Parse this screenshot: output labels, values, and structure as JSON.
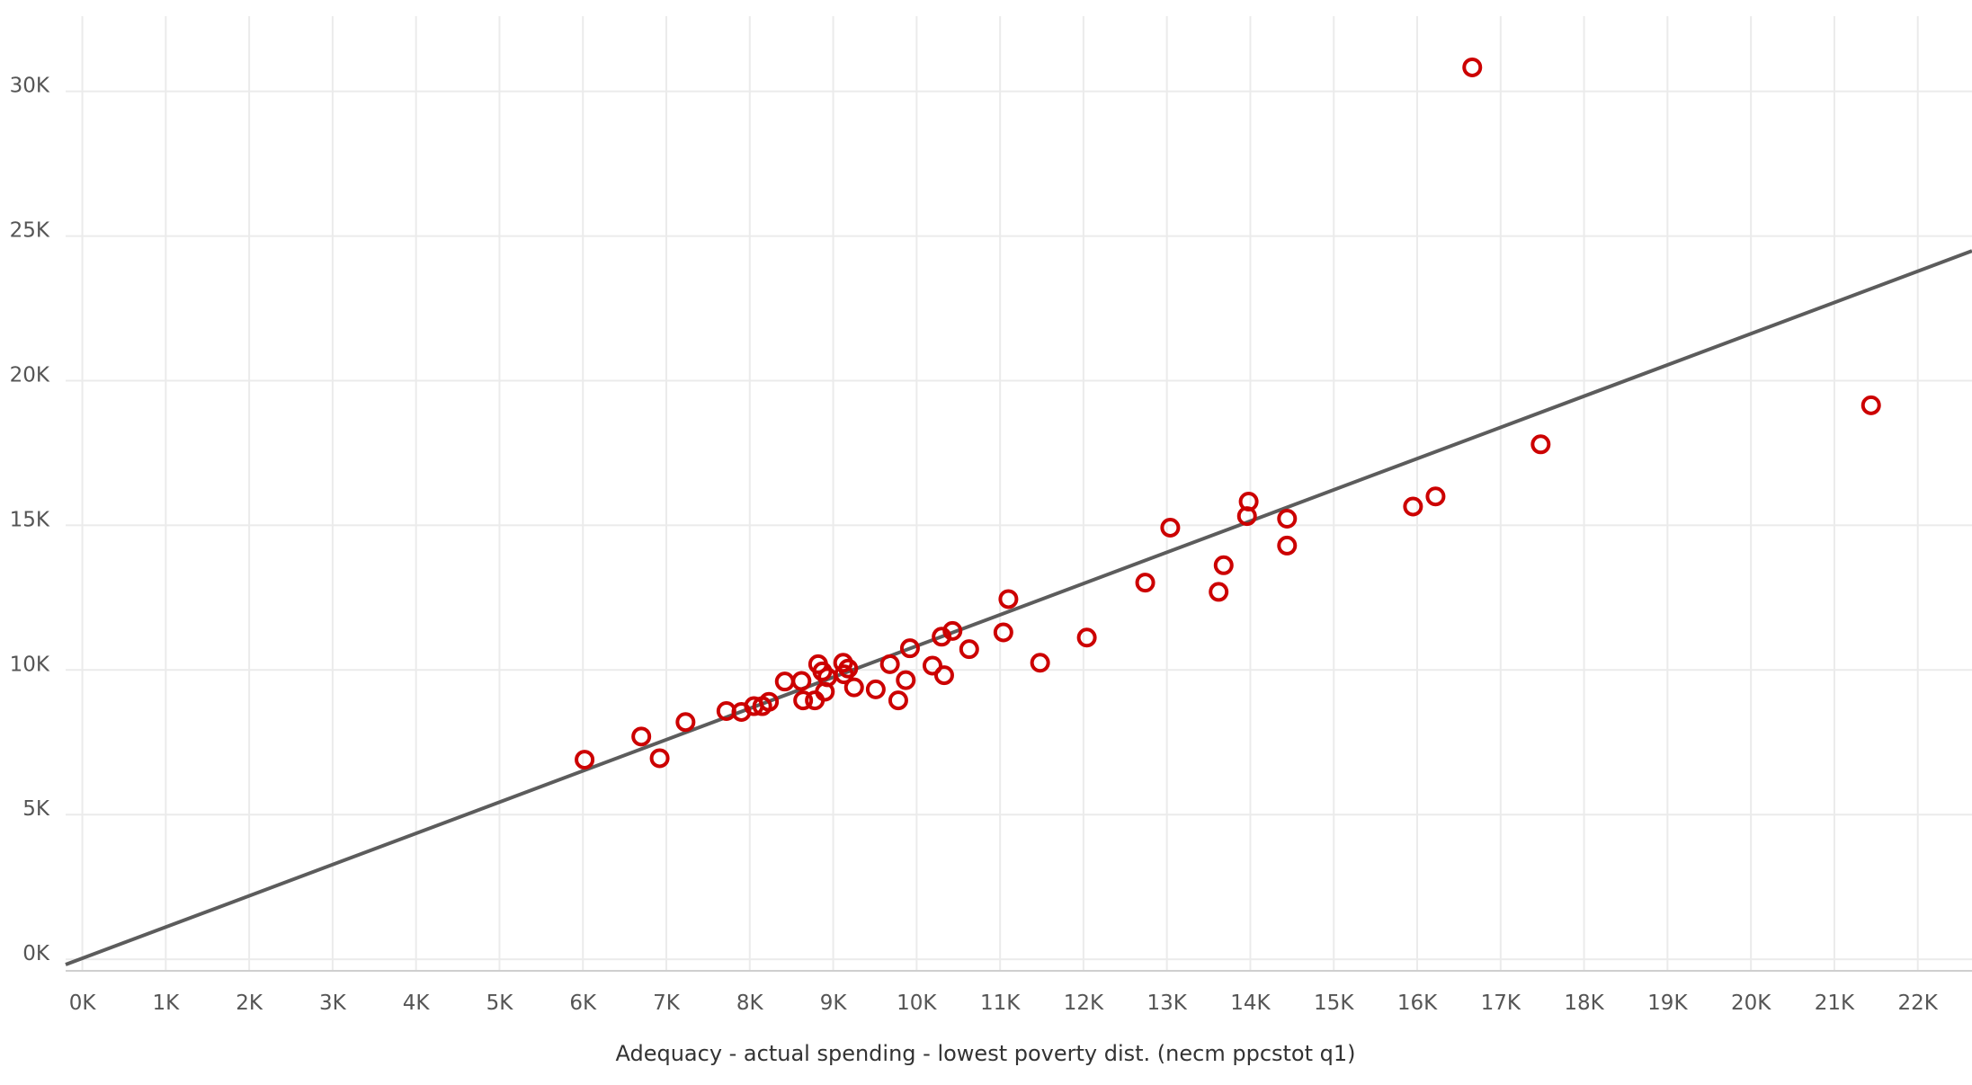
{
  "chart_data": {
    "type": "scatter",
    "title": "",
    "xlabel": "Adequacy - actual spending - lowest poverty dist. (necm ppcstot q1)",
    "ylabel": "",
    "xlim": [
      -200,
      22650
    ],
    "ylim": [
      -400,
      32600
    ],
    "x_ticks": [
      0,
      1000,
      2000,
      3000,
      4000,
      5000,
      6000,
      7000,
      8000,
      9000,
      10000,
      11000,
      12000,
      13000,
      14000,
      15000,
      16000,
      17000,
      18000,
      19000,
      20000,
      21000,
      22000
    ],
    "x_tick_labels": [
      "0K",
      "1K",
      "2K",
      "3K",
      "4K",
      "5K",
      "6K",
      "7K",
      "8K",
      "9K",
      "10K",
      "11K",
      "12K",
      "13K",
      "14K",
      "15K",
      "16K",
      "17K",
      "18K",
      "19K",
      "20K",
      "21K",
      "22K"
    ],
    "y_ticks": [
      0,
      5000,
      10000,
      15000,
      20000,
      25000,
      30000
    ],
    "y_tick_labels": [
      "0K",
      "5K",
      "10K",
      "15K",
      "20K",
      "25K",
      "30K"
    ],
    "grid": true,
    "legend": "none",
    "series": [
      {
        "color": "#cc0000",
        "points": [
          [
            6020,
            6900
          ],
          [
            6700,
            7700
          ],
          [
            6920,
            6950
          ],
          [
            7230,
            8200
          ],
          [
            7720,
            8580
          ],
          [
            7900,
            8550
          ],
          [
            8050,
            8750
          ],
          [
            8150,
            8750
          ],
          [
            8230,
            8900
          ],
          [
            8420,
            9600
          ],
          [
            8620,
            9620
          ],
          [
            8640,
            8950
          ],
          [
            8780,
            8950
          ],
          [
            8820,
            10200
          ],
          [
            8870,
            9950
          ],
          [
            8900,
            9250
          ],
          [
            8930,
            9750
          ],
          [
            9120,
            10250
          ],
          [
            9180,
            10050
          ],
          [
            9130,
            9850
          ],
          [
            9250,
            9400
          ],
          [
            9510,
            9330
          ],
          [
            9680,
            10200
          ],
          [
            9780,
            8950
          ],
          [
            9870,
            9650
          ],
          [
            9920,
            10750
          ],
          [
            10190,
            10150
          ],
          [
            10300,
            11150
          ],
          [
            10330,
            9820
          ],
          [
            10430,
            11350
          ],
          [
            10630,
            10720
          ],
          [
            11040,
            11300
          ],
          [
            11100,
            12450
          ],
          [
            11480,
            10250
          ],
          [
            12040,
            11120
          ],
          [
            12740,
            13020
          ],
          [
            13040,
            14920
          ],
          [
            13620,
            12700
          ],
          [
            13680,
            13620
          ],
          [
            13960,
            15320
          ],
          [
            13980,
            15820
          ],
          [
            14440,
            15230
          ],
          [
            14440,
            14300
          ],
          [
            15950,
            15650
          ],
          [
            16220,
            16000
          ],
          [
            16660,
            30830
          ],
          [
            17480,
            17800
          ],
          [
            21440,
            19150
          ]
        ]
      }
    ],
    "trend_line": {
      "color": "#5c5c5c",
      "slope": 1.0795,
      "intercept": 34,
      "x_range": [
        -200,
        22650
      ]
    }
  }
}
